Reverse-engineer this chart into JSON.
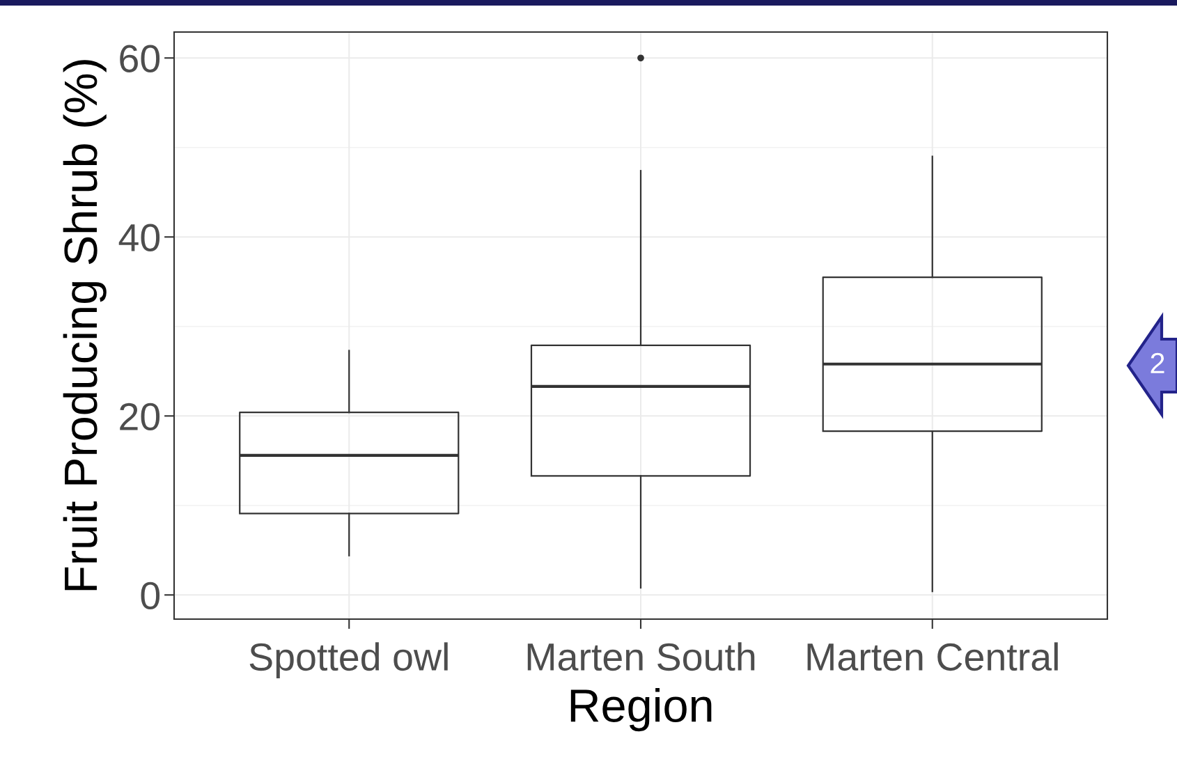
{
  "chart_data": {
    "type": "box",
    "xlabel": "Region",
    "ylabel": "Fruit Producing Shrub (%)",
    "categories": [
      "Spotted owl",
      "Marten South",
      "Marten Central"
    ],
    "boxes": [
      {
        "low": 4.4,
        "q1": 9.1,
        "median": 15.6,
        "q3": 20.4,
        "high": 27.3
      },
      {
        "low": 0.8,
        "q1": 13.3,
        "median": 23.3,
        "q3": 27.9,
        "high": 47.4,
        "outliers": [
          60
        ]
      },
      {
        "low": 0.4,
        "q1": 18.3,
        "median": 25.8,
        "q3": 35.5,
        "high": 49.0
      }
    ],
    "color": "#333333",
    "ylim": [
      -2.7,
      62.9
    ],
    "yticks": [
      0,
      20,
      40,
      60
    ],
    "grid": true,
    "annotations": [
      "2"
    ]
  }
}
